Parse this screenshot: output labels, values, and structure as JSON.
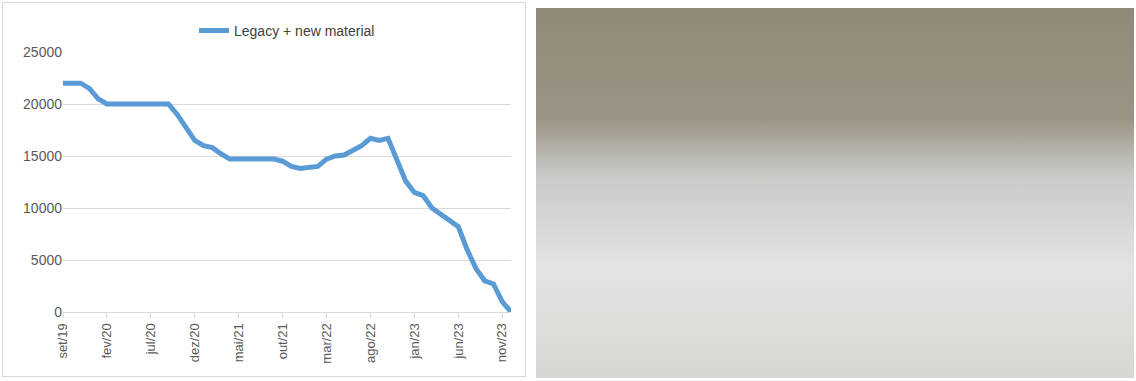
{
  "chart_data": {
    "type": "line",
    "categories": [
      "set/19",
      null,
      null,
      null,
      null,
      "fev/20",
      null,
      null,
      null,
      null,
      "jul/20",
      null,
      null,
      null,
      null,
      "dez/20",
      null,
      null,
      null,
      null,
      "mai/21",
      null,
      null,
      null,
      null,
      "out/21",
      null,
      null,
      null,
      null,
      "mar/22",
      null,
      null,
      null,
      null,
      "ago/22",
      null,
      null,
      null,
      null,
      "jan/23",
      null,
      null,
      null,
      null,
      "jun/23",
      null,
      null,
      null,
      null,
      "nov/23",
      null
    ],
    "series": [
      {
        "name": "Legacy + new material",
        "color": "#5b9bd5",
        "values": [
          22000,
          22000,
          22000,
          21500,
          20500,
          20000,
          20000,
          20000,
          20000,
          20000,
          20000,
          20000,
          20000,
          19000,
          17800,
          16500,
          16000,
          15800,
          15200,
          14700,
          14700,
          14700,
          14700,
          14700,
          14700,
          14500,
          14000,
          13800,
          13900,
          14000,
          14700,
          15000,
          15100,
          15500,
          16000,
          16700,
          16500,
          16700,
          14500,
          12600,
          11500,
          11200,
          10000,
          9400,
          8700,
          8200,
          6000,
          4200,
          3000,
          2700,
          1000,
          0
        ]
      }
    ],
    "ylim": [
      0,
      25000
    ],
    "yticks": [
      0,
      5000,
      10000,
      15000,
      20000,
      25000
    ],
    "grid": true,
    "legend": "top"
  }
}
